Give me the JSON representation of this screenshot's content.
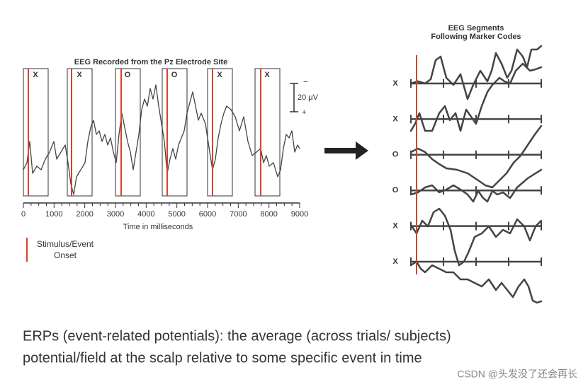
{
  "left_panel": {
    "title": "EEG Recorded from the Pz Electrode Site",
    "box_labels": [
      "X",
      "X",
      "O",
      "O",
      "X",
      "X"
    ],
    "scale": {
      "minus": "−",
      "value": "20 μV",
      "plus": "+"
    },
    "axis": {
      "ticks": [
        "0",
        "1000",
        "2000",
        "3000",
        "4000",
        "5000",
        "6000",
        "7000",
        "8000",
        "9000"
      ],
      "label": "Time in milliseconds"
    },
    "legend": {
      "line1": "Stimulus/Event",
      "line2": "Onset"
    }
  },
  "right_panel": {
    "title_line1": "EEG Segments",
    "title_line2": "Following Marker Codes",
    "row_labels": [
      "X",
      "X",
      "O",
      "O",
      "X",
      "X"
    ]
  },
  "caption": {
    "line1": "ERPs (event-related potentials): the average (across trials/ subjects)",
    "line2": "potential/field at the scalp relative to some specific event in time"
  },
  "watermark": "CSDN @头发没了还会再长"
}
